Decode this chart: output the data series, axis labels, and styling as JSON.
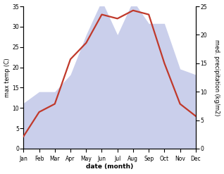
{
  "months": [
    "Jan",
    "Feb",
    "Mar",
    "Apr",
    "May",
    "Jun",
    "Jul",
    "Aug",
    "Sep",
    "Oct",
    "Nov",
    "Dec"
  ],
  "temperature": [
    3,
    9,
    11,
    22,
    26,
    33,
    32,
    34,
    33,
    21,
    11,
    8
  ],
  "precipitation": [
    8,
    10,
    10,
    13,
    20,
    26,
    20,
    26,
    22,
    22,
    14,
    13
  ],
  "temp_color": "#c0392b",
  "precip_color_fill": "#c5cae9",
  "temp_ylim": [
    0,
    35
  ],
  "precip_ylim": [
    0,
    25
  ],
  "temp_yticks": [
    0,
    5,
    10,
    15,
    20,
    25,
    30,
    35
  ],
  "precip_yticks": [
    0,
    5,
    10,
    15,
    20,
    25
  ],
  "ylabel_left": "max temp (C)",
  "ylabel_right": "med. precipitation (kg/m2)",
  "xlabel": "date (month)",
  "figsize": [
    3.18,
    2.47
  ],
  "dpi": 100
}
